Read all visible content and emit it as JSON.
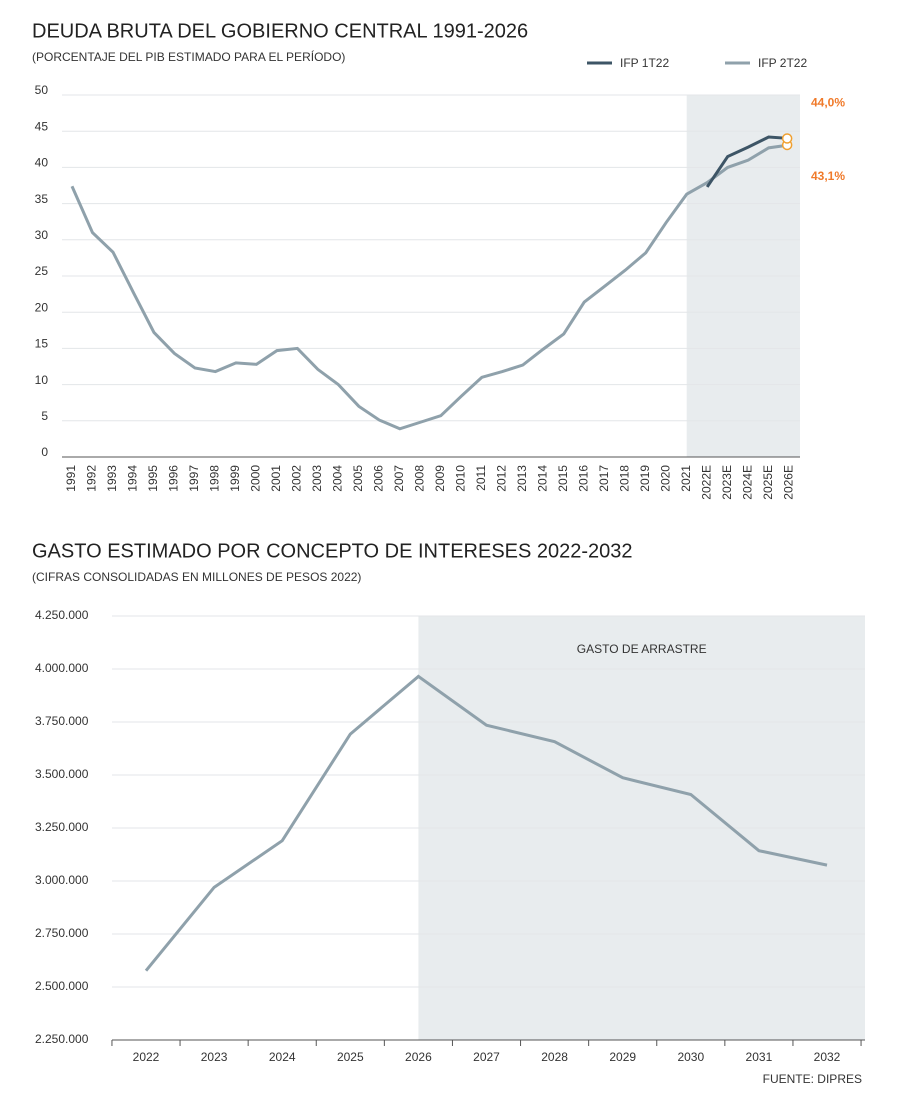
{
  "chart_data": [
    {
      "type": "line",
      "title": "DEUDA BRUTA DEL GOBIERNO CENTRAL 1991-2026",
      "subtitle": "(PORCENTAJE DEL PIB ESTIMADO PARA EL PERÍODO)",
      "categories": [
        "1991",
        "1992",
        "1993",
        "1994",
        "1995",
        "1996",
        "1997",
        "1998",
        "1999",
        "2000",
        "2001",
        "2002",
        "2003",
        "2004",
        "2005",
        "2006",
        "2007",
        "2008",
        "2009",
        "2010",
        "2011",
        "2012",
        "2013",
        "2014",
        "2015",
        "2016",
        "2017",
        "2018",
        "2019",
        "2020",
        "2021",
        "2022E",
        "2023E",
        "2024E",
        "2025E",
        "2026E"
      ],
      "series": [
        {
          "name": "IFP 1T22",
          "color": "#3d5566",
          "values": [
            null,
            null,
            null,
            null,
            null,
            null,
            null,
            null,
            null,
            null,
            null,
            null,
            null,
            null,
            null,
            null,
            null,
            null,
            null,
            null,
            null,
            null,
            null,
            null,
            null,
            null,
            null,
            null,
            null,
            null,
            null,
            37.3,
            41.5,
            42.8,
            44.2,
            44.0
          ],
          "value_labels": [
            null,
            null,
            null,
            null,
            null,
            null,
            null,
            null,
            null,
            null,
            null,
            null,
            null,
            null,
            null,
            null,
            null,
            null,
            null,
            null,
            null,
            null,
            null,
            null,
            null,
            null,
            null,
            null,
            null,
            null,
            null,
            null,
            null,
            null,
            null,
            "44,0%"
          ]
        },
        {
          "name": "IFP 2T22",
          "color": "#8fa1ab",
          "values": [
            37.4,
            31.0,
            28.3,
            22.7,
            17.2,
            14.3,
            12.3,
            11.8,
            13.0,
            12.8,
            14.7,
            15.0,
            12.1,
            10.0,
            7.0,
            5.1,
            3.9,
            4.8,
            5.7,
            8.4,
            11.0,
            11.8,
            12.7,
            14.9,
            17.0,
            21.4,
            23.6,
            25.8,
            28.2,
            32.4,
            36.3,
            37.9,
            40.0,
            41.0,
            42.7,
            43.1
          ],
          "value_labels": [
            null,
            null,
            null,
            null,
            null,
            null,
            null,
            null,
            null,
            null,
            null,
            null,
            null,
            null,
            null,
            null,
            null,
            null,
            null,
            null,
            null,
            null,
            null,
            null,
            null,
            null,
            null,
            null,
            null,
            null,
            null,
            null,
            null,
            null,
            null,
            "43,1%"
          ]
        }
      ],
      "ylim": [
        0,
        50
      ],
      "yticks": [
        0,
        5,
        10,
        15,
        20,
        25,
        30,
        35,
        40,
        45,
        50
      ],
      "grid": true,
      "legend": "top-right"
    },
    {
      "type": "line",
      "title": "GASTO ESTIMADO POR CONCEPTO DE INTERESES 2022-2032",
      "subtitle": "(CIFRAS CONSOLIDADAS EN MILLONES DE PESOS 2022)",
      "annotation": "GASTO DE ARRASTRE",
      "source": "FUENTE: DIPRES",
      "categories": [
        "2022",
        "2023",
        "2024",
        "2025",
        "2026",
        "2027",
        "2028",
        "2029",
        "2030",
        "2031",
        "2032"
      ],
      "series": [
        {
          "name": null,
          "color": "#8fa1ab",
          "values": [
            2577000,
            2970000,
            3190000,
            3693000,
            3965000,
            3735000,
            3657000,
            3487000,
            3408000,
            3143000,
            3075000
          ]
        }
      ],
      "ylim": [
        2250000,
        4250000
      ],
      "yticks": [
        {
          "value": 2250000,
          "label": "2.250.000"
        },
        {
          "value": 2500000,
          "label": "2.500.000"
        },
        {
          "value": 2750000,
          "label": "2.750.000"
        },
        {
          "value": 3000000,
          "label": "3.000.000"
        },
        {
          "value": 3250000,
          "label": "3.250.000"
        },
        {
          "value": 3500000,
          "label": "3.500.000"
        },
        {
          "value": 3750000,
          "label": "3.750.000"
        },
        {
          "value": 4000000,
          "label": "4.000.000"
        },
        {
          "value": 4250000,
          "label": "4.250.000"
        }
      ],
      "grid": true
    }
  ]
}
